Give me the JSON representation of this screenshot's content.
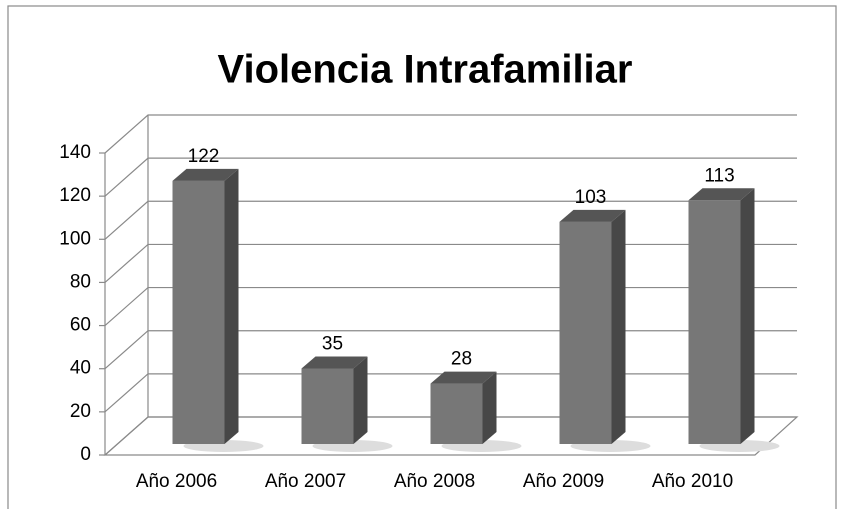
{
  "chart_data": {
    "type": "bar",
    "title": "Violencia Intrafamiliar",
    "categories": [
      "Año 2006",
      "Año 2007",
      "Año 2008",
      "Año 2009",
      "Año 2010"
    ],
    "values": [
      122,
      35,
      28,
      103,
      113
    ],
    "color": "#777777",
    "ylim": [
      0,
      140
    ],
    "yticks": [
      0,
      20,
      40,
      60,
      80,
      100,
      120,
      140
    ],
    "grid": true
  }
}
